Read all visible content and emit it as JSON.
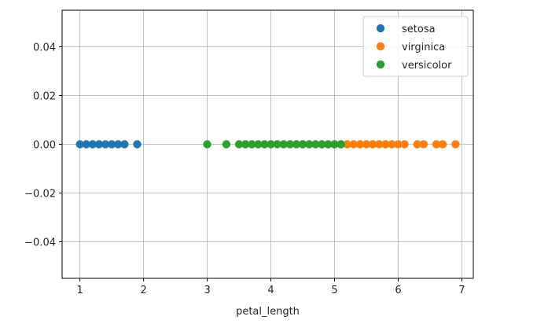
{
  "chart_data": {
    "type": "scatter",
    "title": "",
    "xlabel": "petal_length",
    "ylabel": "",
    "xlim": [
      0.72,
      7.18
    ],
    "ylim": [
      -0.055,
      0.055
    ],
    "x_ticks": [
      1,
      2,
      3,
      4,
      5,
      6,
      7
    ],
    "x_tick_labels": [
      "1",
      "2",
      "3",
      "4",
      "5",
      "6",
      "7"
    ],
    "y_ticks": [
      0.04,
      0.02,
      0.0,
      -0.02,
      -0.04
    ],
    "y_tick_labels": [
      "0.04",
      "0.02",
      "0.00",
      "−0.02",
      "−0.04"
    ],
    "grid": true,
    "legend_position": "top-right",
    "series": [
      {
        "name": "setosa",
        "color": "#1f77b4",
        "x": [
          1.0,
          1.1,
          1.2,
          1.3,
          1.4,
          1.5,
          1.6,
          1.7,
          1.9
        ],
        "y": [
          0,
          0,
          0,
          0,
          0,
          0,
          0,
          0,
          0
        ]
      },
      {
        "name": "virginica",
        "color": "#ff7f0e",
        "x": [
          4.5,
          4.8,
          4.9,
          5.0,
          5.1,
          5.2,
          5.3,
          5.4,
          5.5,
          5.6,
          5.7,
          5.8,
          5.9,
          6.0,
          6.1,
          6.3,
          6.4,
          6.6,
          6.7,
          6.9
        ],
        "y": [
          0,
          0,
          0,
          0,
          0,
          0,
          0,
          0,
          0,
          0,
          0,
          0,
          0,
          0,
          0,
          0,
          0,
          0,
          0,
          0
        ]
      },
      {
        "name": "versicolor",
        "color": "#2ca02c",
        "x": [
          3.0,
          3.3,
          3.5,
          3.6,
          3.7,
          3.8,
          3.9,
          4.0,
          4.1,
          4.2,
          4.3,
          4.4,
          4.5,
          4.6,
          4.7,
          4.8,
          4.9,
          5.0,
          5.1
        ],
        "y": [
          0,
          0,
          0,
          0,
          0,
          0,
          0,
          0,
          0,
          0,
          0,
          0,
          0,
          0,
          0,
          0,
          0,
          0,
          0
        ]
      }
    ]
  }
}
